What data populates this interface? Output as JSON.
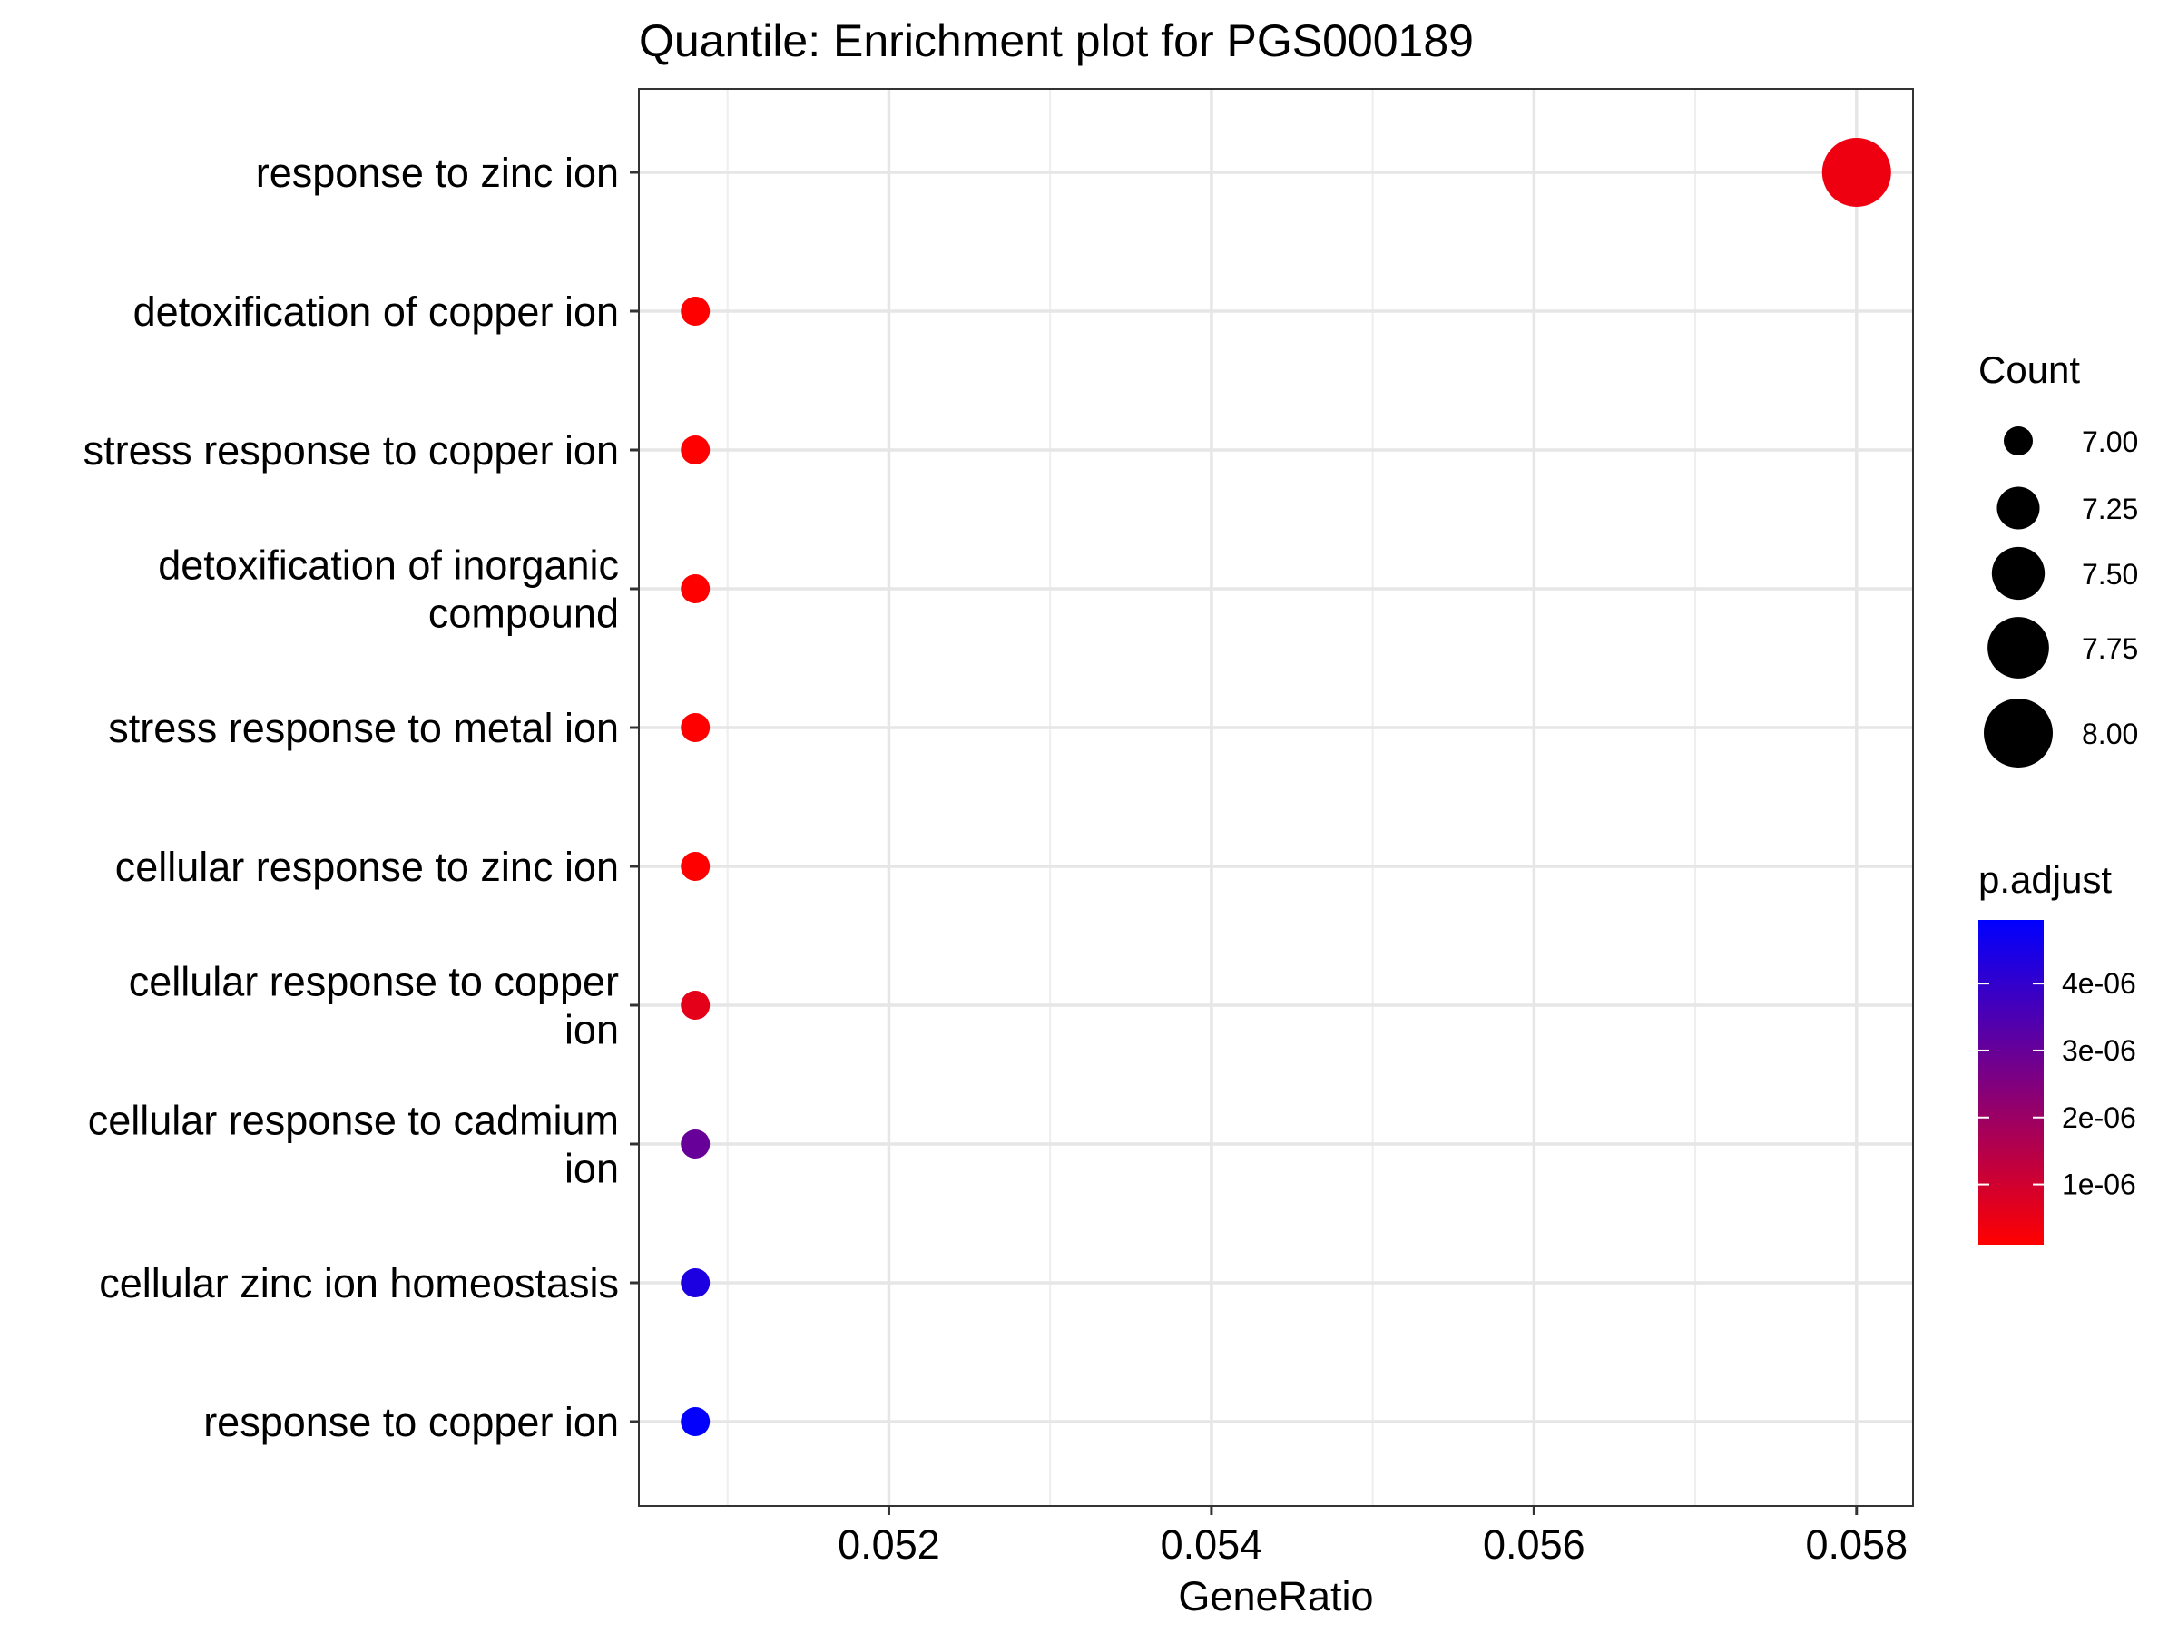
{
  "chart_data": {
    "type": "scatter",
    "title": "Quantile: Enrichment plot for PGS000189",
    "xlabel": "GeneRatio",
    "ylabel": "",
    "xlim": [
      0.05045,
      0.05835
    ],
    "x_ticks": [
      "0.052",
      "0.054",
      "0.056",
      "0.058"
    ],
    "x_tick_values": [
      0.052,
      0.054,
      0.056,
      0.058
    ],
    "grid": true,
    "points": [
      {
        "label": [
          "response to zinc ion"
        ],
        "x": 0.058,
        "count": 8,
        "p_adjust": 4e-07
      },
      {
        "label": [
          "detoxification of copper ion"
        ],
        "x": 0.0508,
        "count": 7,
        "p_adjust": 1e-07
      },
      {
        "label": [
          "stress response to copper ion"
        ],
        "x": 0.0508,
        "count": 7,
        "p_adjust": 1e-07
      },
      {
        "label": [
          "detoxification of inorganic",
          "compound"
        ],
        "x": 0.0508,
        "count": 7,
        "p_adjust": 1e-07
      },
      {
        "label": [
          "stress response to metal ion"
        ],
        "x": 0.0508,
        "count": 7,
        "p_adjust": 1e-07
      },
      {
        "label": [
          "cellular response to zinc ion"
        ],
        "x": 0.0508,
        "count": 7,
        "p_adjust": 1e-07
      },
      {
        "label": [
          "cellular response to copper",
          "ion"
        ],
        "x": 0.0508,
        "count": 7,
        "p_adjust": 6e-07
      },
      {
        "label": [
          "cellular response to cadmium",
          "ion"
        ],
        "x": 0.0508,
        "count": 7,
        "p_adjust": 3e-06
      },
      {
        "label": [
          "cellular zinc ion homeostasis"
        ],
        "x": 0.0508,
        "count": 7,
        "p_adjust": 4.4e-06
      },
      {
        "label": [
          "response to copper ion"
        ],
        "x": 0.0508,
        "count": 7,
        "p_adjust": 4.9e-06
      }
    ],
    "legend_placement": "right",
    "size_legend": {
      "title": "Count",
      "values": [
        7.0,
        7.25,
        7.5,
        7.75,
        8.0
      ],
      "labels": [
        "7.00",
        "7.25",
        "7.50",
        "7.75",
        "8.00"
      ]
    },
    "color_legend": {
      "title": "p.adjust",
      "range": [
        1e-07,
        4.95e-06
      ],
      "breaks": [
        1e-06,
        2e-06,
        3e-06,
        4e-06
      ],
      "labels": [
        "1e-06",
        "2e-06",
        "3e-06",
        "4e-06"
      ],
      "low_color": "#ff0000",
      "high_color": "#0000ff"
    }
  }
}
